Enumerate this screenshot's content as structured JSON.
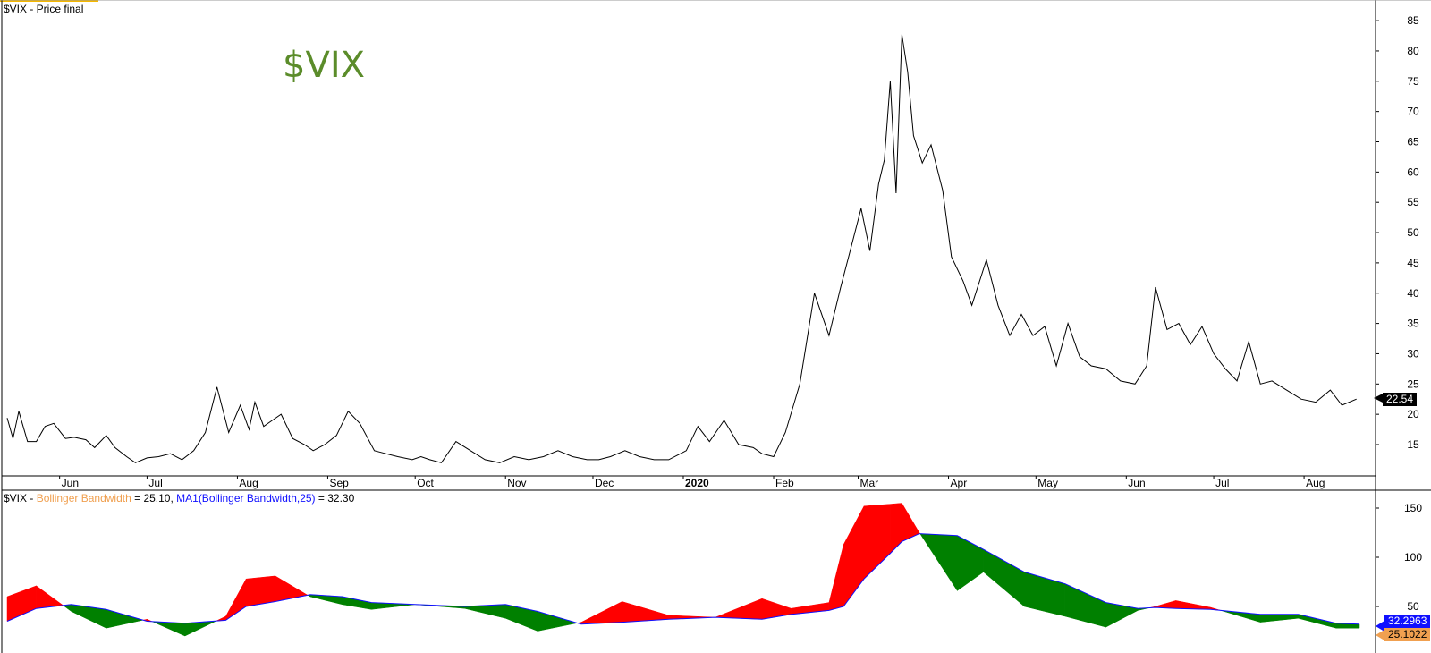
{
  "upper_panel": {
    "title": "$VIX - Price final",
    "watermark": "$VIX",
    "last_price": "22.54"
  },
  "lower_panel": {
    "prefix": "$VIX - ",
    "bw_label": "Bollinger Bandwidth",
    "bw_value_text": " = 25.10, ",
    "ma_label": "MA1(Bollinger Bandwidth,25)",
    "ma_value_text": " = 32.30",
    "ma_badge": "32.2963",
    "bw_badge": "25.1022"
  },
  "colors": {
    "price_line": "#000000",
    "above_ma": "#ff0000",
    "below_ma": "#008000",
    "ma_line": "#1010ff",
    "watermark": "#5b8c2a"
  },
  "chart_data": [
    {
      "type": "line",
      "title": "$VIX - Price final",
      "y_ticks": [
        15,
        20,
        25,
        30,
        35,
        40,
        45,
        50,
        55,
        60,
        65,
        70,
        75,
        80,
        85
      ],
      "ylim": [
        10,
        85
      ],
      "x_month_labels": [
        "Jun",
        "Jul",
        "Aug",
        "Sep",
        "Oct",
        "Nov",
        "Dec",
        "2020",
        "Feb",
        "Mar",
        "Apr",
        "May",
        "Jun",
        "Jul",
        "Aug"
      ],
      "series": [
        {
          "x": [
            "2019-05-14",
            "2019-05-16",
            "2019-05-18",
            "2019-05-21",
            "2019-05-24",
            "2019-05-27",
            "2019-05-30",
            "2019-06-03",
            "2019-06-06",
            "2019-06-10",
            "2019-06-13",
            "2019-06-17",
            "2019-06-20",
            "2019-06-24",
            "2019-06-27",
            "2019-07-01",
            "2019-07-05",
            "2019-07-09",
            "2019-07-13",
            "2019-07-17",
            "2019-07-21",
            "2019-07-25",
            "2019-07-29",
            "2019-08-02",
            "2019-08-05",
            "2019-08-07",
            "2019-08-10",
            "2019-08-13",
            "2019-08-16",
            "2019-08-20",
            "2019-08-24",
            "2019-08-27",
            "2019-08-31",
            "2019-09-04",
            "2019-09-08",
            "2019-09-12",
            "2019-09-17",
            "2019-09-21",
            "2019-09-25",
            "2019-09-30",
            "2019-10-03",
            "2019-10-06",
            "2019-10-10",
            "2019-10-15",
            "2019-10-20",
            "2019-10-25",
            "2019-10-30",
            "2019-11-04",
            "2019-11-09",
            "2019-11-14",
            "2019-11-19",
            "2019-11-24",
            "2019-11-29",
            "2019-12-03",
            "2019-12-07",
            "2019-12-12",
            "2019-12-17",
            "2019-12-22",
            "2019-12-27",
            "2020-01-02",
            "2020-01-06",
            "2020-01-10",
            "2020-01-15",
            "2020-01-20",
            "2020-01-25",
            "2020-01-28",
            "2020-02-01",
            "2020-02-05",
            "2020-02-10",
            "2020-02-15",
            "2020-02-20",
            "2020-02-24",
            "2020-02-27",
            "2020-03-02",
            "2020-03-05",
            "2020-03-08",
            "2020-03-10",
            "2020-03-12",
            "2020-03-14",
            "2020-03-16",
            "2020-03-18",
            "2020-03-20",
            "2020-03-23",
            "2020-03-26",
            "2020-03-30",
            "2020-04-02",
            "2020-04-06",
            "2020-04-09",
            "2020-04-14",
            "2020-04-18",
            "2020-04-22",
            "2020-04-26",
            "2020-04-30",
            "2020-05-04",
            "2020-05-08",
            "2020-05-12",
            "2020-05-16",
            "2020-05-20",
            "2020-05-25",
            "2020-05-30",
            "2020-06-04",
            "2020-06-08",
            "2020-06-11",
            "2020-06-15",
            "2020-06-19",
            "2020-06-23",
            "2020-06-27",
            "2020-07-01",
            "2020-07-05",
            "2020-07-09",
            "2020-07-13",
            "2020-07-17",
            "2020-07-21",
            "2020-07-26",
            "2020-07-31",
            "2020-08-05",
            "2020-08-10",
            "2020-08-14",
            "2020-08-19"
          ],
          "values": [
            19.4,
            16.0,
            20.5,
            15.5,
            15.5,
            18.0,
            18.5,
            16.0,
            16.2,
            15.8,
            14.5,
            16.5,
            14.5,
            13.0,
            12.0,
            12.8,
            13.0,
            13.5,
            12.5,
            14.0,
            17.0,
            24.5,
            17.0,
            21.5,
            17.5,
            22.0,
            18.0,
            19.0,
            20.0,
            16.0,
            15.0,
            14.0,
            15.0,
            16.5,
            20.5,
            18.5,
            14.0,
            13.5,
            13.0,
            12.5,
            13.0,
            12.5,
            12.0,
            15.5,
            14.0,
            12.5,
            12.0,
            13.0,
            12.5,
            13.0,
            14.0,
            13.0,
            12.5,
            12.5,
            13.0,
            14.0,
            13.0,
            12.5,
            12.5,
            14.0,
            18.0,
            15.5,
            19.0,
            15.0,
            14.5,
            13.5,
            13.0,
            17.0,
            25.0,
            40.0,
            33.0,
            41.0,
            46.5,
            54.0,
            47.0,
            58.0,
            62.0,
            75.0,
            56.5,
            82.7,
            76.5,
            66.0,
            61.5,
            64.5,
            57.0,
            46.0,
            42.0,
            38.0,
            45.5,
            38.0,
            33.0,
            36.5,
            33.0,
            34.5,
            28.0,
            35.0,
            29.5,
            28.0,
            27.5,
            25.5,
            25.0,
            28.0,
            41.0,
            34.0,
            35.0,
            31.5,
            34.5,
            30.0,
            27.5,
            25.5,
            32.0,
            25.0,
            25.5,
            24.0,
            22.5,
            22.0,
            24.0,
            21.5,
            22.5
          ]
        }
      ]
    },
    {
      "type": "area",
      "title": "$VIX - Bollinger Bandwidth = 25.10, MA1(Bollinger Bandwidth,25) = 32.30",
      "y_ticks": [
        50,
        100,
        150
      ],
      "ylim": [
        25,
        165
      ],
      "series": [
        {
          "name": "Bollinger Bandwidth",
          "x": [
            "2019-05-14",
            "2019-05-24",
            "2019-06-05",
            "2019-06-17",
            "2019-07-01",
            "2019-07-14",
            "2019-07-28",
            "2019-08-04",
            "2019-08-14",
            "2019-08-26",
            "2019-09-06",
            "2019-09-16",
            "2019-10-01",
            "2019-10-18",
            "2019-11-01",
            "2019-11-12",
            "2019-11-27",
            "2019-12-11",
            "2019-12-27",
            "2020-01-12",
            "2020-01-28",
            "2020-02-07",
            "2020-02-20",
            "2020-02-25",
            "2020-03-03",
            "2020-03-12",
            "2020-03-16",
            "2020-03-22",
            "2020-04-04",
            "2020-04-13",
            "2020-04-27",
            "2020-05-11",
            "2020-05-25",
            "2020-06-05",
            "2020-06-11",
            "2020-06-18",
            "2020-06-30",
            "2020-07-17",
            "2020-07-30",
            "2020-08-12",
            "2020-08-20"
          ],
          "values": [
            60,
            71,
            45,
            28,
            37,
            20,
            40,
            78,
            81,
            60,
            52,
            47,
            52,
            48,
            38,
            25,
            34,
            55,
            41,
            39,
            58,
            48,
            54,
            113,
            152,
            154,
            155,
            125,
            66,
            85,
            50,
            40,
            29,
            46,
            50,
            56,
            49,
            34,
            38,
            28,
            28
          ]
        },
        {
          "name": "MA1(Bollinger Bandwidth,25)",
          "x": [
            "2019-05-14",
            "2019-05-24",
            "2019-06-05",
            "2019-06-17",
            "2019-07-01",
            "2019-07-14",
            "2019-07-28",
            "2019-08-04",
            "2019-08-14",
            "2019-08-26",
            "2019-09-06",
            "2019-09-16",
            "2019-10-01",
            "2019-10-18",
            "2019-11-01",
            "2019-11-12",
            "2019-11-27",
            "2019-12-11",
            "2019-12-27",
            "2020-01-12",
            "2020-01-28",
            "2020-02-07",
            "2020-02-20",
            "2020-02-25",
            "2020-03-03",
            "2020-03-12",
            "2020-03-16",
            "2020-03-22",
            "2020-04-04",
            "2020-04-13",
            "2020-04-27",
            "2020-05-11",
            "2020-05-25",
            "2020-06-05",
            "2020-06-11",
            "2020-06-18",
            "2020-06-30",
            "2020-07-17",
            "2020-07-30",
            "2020-08-12",
            "2020-08-20"
          ],
          "values": [
            35,
            48,
            52,
            47,
            35,
            33,
            36,
            50,
            55,
            62,
            60,
            54,
            52,
            50,
            52,
            45,
            32,
            34,
            37,
            39,
            37,
            42,
            46,
            50,
            78,
            104,
            116,
            124,
            122,
            108,
            85,
            73,
            54,
            48,
            49,
            48,
            47,
            42,
            42,
            33,
            32
          ]
        }
      ]
    }
  ]
}
